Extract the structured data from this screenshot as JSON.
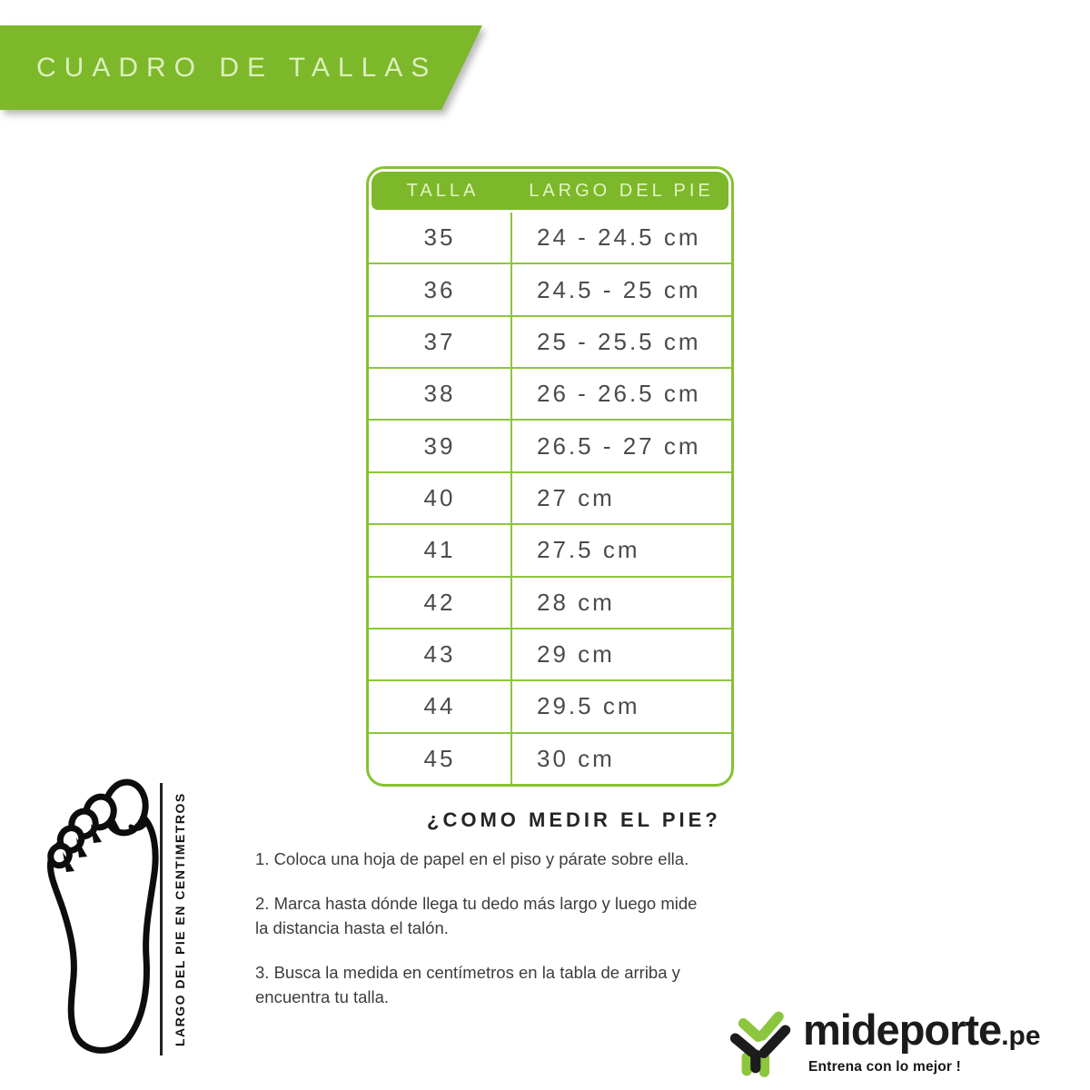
{
  "banner": {
    "title": "CUADRO DE TALLAS"
  },
  "colors": {
    "green_main": "#7cb829",
    "green_border": "#8cc63e",
    "green_light_text": "#e4f3c6",
    "icon_green": "#8cc63e",
    "icon_black": "#1c1c1c",
    "cell_text": "#4b4b4b"
  },
  "size_table": {
    "columns": [
      "TALLA",
      "LARGO DEL PIE"
    ],
    "rows": [
      {
        "talla": "35",
        "largo": "24 - 24.5 cm"
      },
      {
        "talla": "36",
        "largo": "24.5 - 25 cm"
      },
      {
        "talla": "37",
        "largo": "25 - 25.5 cm"
      },
      {
        "talla": "38",
        "largo": "26 - 26.5 cm"
      },
      {
        "talla": "39",
        "largo": "26.5 - 27 cm"
      },
      {
        "talla": "40",
        "largo": "27 cm"
      },
      {
        "talla": "41",
        "largo": "27.5 cm"
      },
      {
        "talla": "42",
        "largo": "28 cm"
      },
      {
        "talla": "43",
        "largo": "29 cm"
      },
      {
        "talla": "44",
        "largo": "29.5 cm"
      },
      {
        "talla": "45",
        "largo": "30 cm"
      }
    ]
  },
  "how_to": {
    "title": "¿COMO MEDIR EL PIE?",
    "steps": [
      "1. Coloca una hoja de papel en el piso y párate sobre ella.",
      "2. Marca hasta dónde llega tu dedo más largo y luego mide\nla distancia hasta el talón.",
      "3. Busca la medida en centímetros en la tabla de arriba y\nencuentra tu talla."
    ]
  },
  "foot_label": "LARGO DEL PIE EN CENTIMETROS",
  "logo": {
    "brand": "mideporte",
    "tld": ".pe",
    "tagline": "Entrena con lo mejor !"
  }
}
